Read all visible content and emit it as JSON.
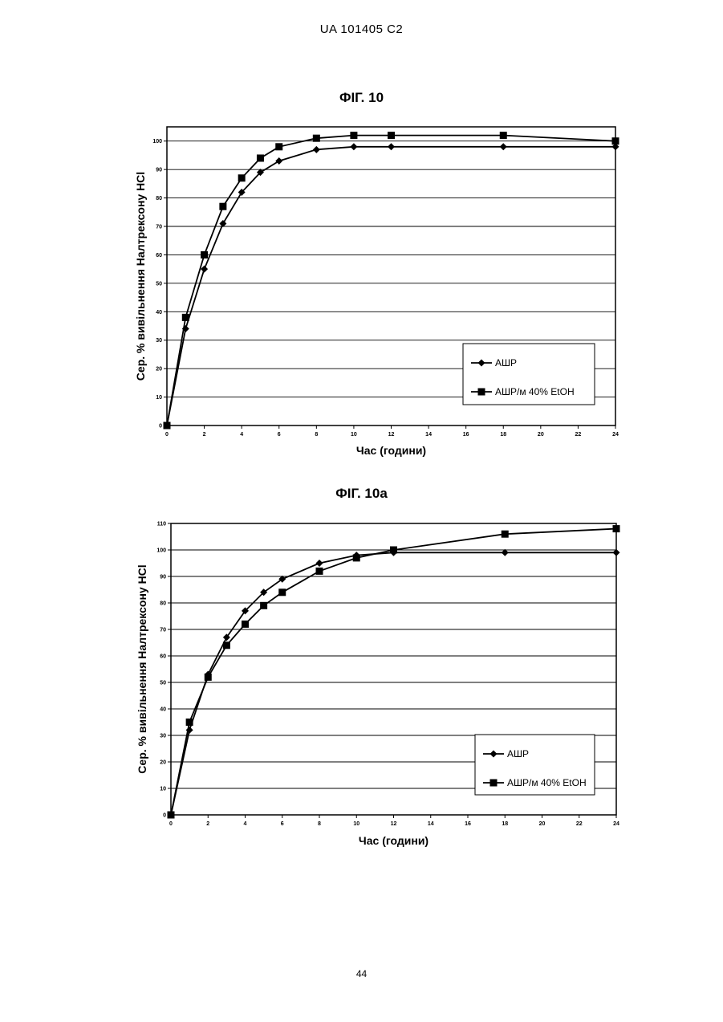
{
  "header": {
    "text": "UA   101405   C2"
  },
  "footer": {
    "page_number": "44"
  },
  "chart_data": [
    {
      "type": "line",
      "title": "ФІГ. 10",
      "xlabel": "Час (години)",
      "ylabel": "Сер. % вивільнення Налтрексону HCl",
      "xlim": [
        0,
        24
      ],
      "ylim": [
        0,
        105
      ],
      "x_ticks": [
        0,
        2,
        4,
        6,
        8,
        10,
        12,
        14,
        16,
        18,
        20,
        22,
        24
      ],
      "y_ticks": [
        0,
        10,
        20,
        30,
        40,
        50,
        60,
        70,
        80,
        90,
        100
      ],
      "grid": "horizontal",
      "legend_position": "bottom-right",
      "series": [
        {
          "name": "АШР",
          "marker": "diamond",
          "x": [
            0,
            1,
            2,
            3,
            4,
            5,
            6,
            8,
            10,
            12,
            18,
            24
          ],
          "y": [
            0,
            34,
            55,
            71,
            82,
            89,
            93,
            97,
            98,
            98,
            98,
            98
          ]
        },
        {
          "name": "АШР/м 40% EtOH",
          "marker": "square",
          "x": [
            0,
            1,
            2,
            3,
            4,
            5,
            6,
            8,
            10,
            12,
            18,
            24
          ],
          "y": [
            0,
            38,
            60,
            77,
            87,
            94,
            98,
            101,
            102,
            102,
            102,
            100
          ]
        }
      ]
    },
    {
      "type": "line",
      "title": "ФІГ. 10а",
      "xlabel": "Час (години)",
      "ylabel": "Сер. % вивільнення Налтрексону HCl",
      "xlim": [
        0,
        24
      ],
      "ylim": [
        0,
        110
      ],
      "x_ticks": [
        0,
        2,
        4,
        6,
        8,
        10,
        12,
        14,
        16,
        18,
        20,
        22,
        24
      ],
      "y_ticks": [
        0,
        10,
        20,
        30,
        40,
        50,
        60,
        70,
        80,
        90,
        100,
        110
      ],
      "grid": "horizontal",
      "legend_position": "bottom-right",
      "series": [
        {
          "name": "АШР",
          "marker": "diamond",
          "x": [
            0,
            1,
            2,
            3,
            4,
            5,
            6,
            8,
            10,
            12,
            18,
            24
          ],
          "y": [
            0,
            32,
            53,
            67,
            77,
            84,
            89,
            95,
            98,
            99,
            99,
            99
          ]
        },
        {
          "name": "АШР/м 40% EtOH",
          "marker": "square",
          "x": [
            0,
            1,
            2,
            3,
            4,
            5,
            6,
            8,
            10,
            12,
            18,
            24
          ],
          "y": [
            0,
            35,
            52,
            64,
            72,
            79,
            84,
            92,
            97,
            100,
            106,
            108
          ]
        }
      ]
    }
  ]
}
